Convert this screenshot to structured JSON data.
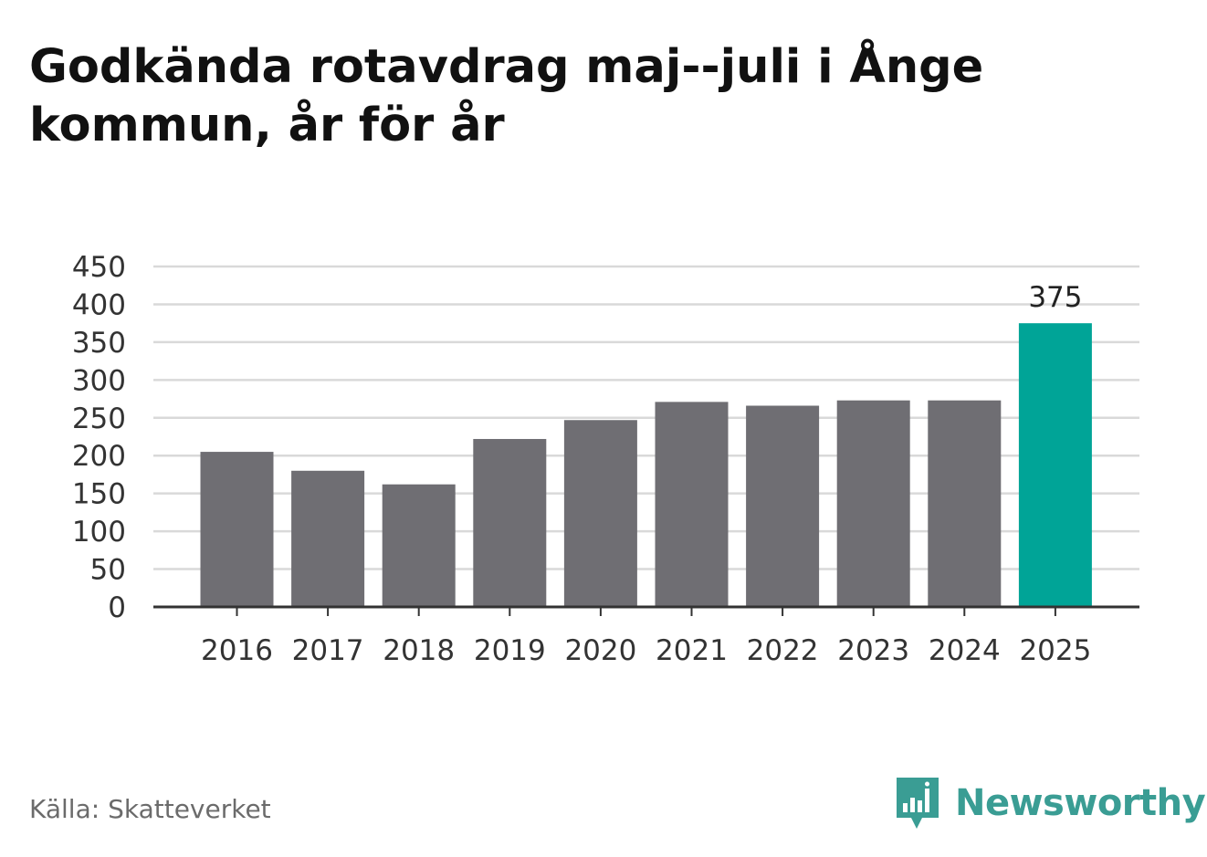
{
  "header": {
    "title": "Godkända rotavdrag maj--juli i Ånge kommun, år för år"
  },
  "footer": {
    "source": "Källa: Skatteverket",
    "brand": "Newsworthy"
  },
  "colors": {
    "bar_default": "#6f6e73",
    "bar_highlight": "#00a497",
    "gridline": "#d9d9d9",
    "axis": "#333333",
    "brand": "#3a9d94"
  },
  "chart_data": {
    "type": "bar",
    "title": "Godkända rotavdrag maj--juli i Ånge kommun, år för år",
    "xlabel": "",
    "ylabel": "",
    "categories": [
      "2016",
      "2017",
      "2018",
      "2019",
      "2020",
      "2021",
      "2022",
      "2023",
      "2024",
      "2025"
    ],
    "values": [
      205,
      180,
      162,
      222,
      247,
      271,
      266,
      273,
      273,
      375
    ],
    "highlight_index": 9,
    "data_labels": [
      {
        "index": 9,
        "text": "375"
      }
    ],
    "ylim": [
      0,
      450
    ],
    "yticks": [
      0,
      50,
      100,
      150,
      200,
      250,
      300,
      350,
      400,
      450
    ],
    "ytick_labels": [
      "0",
      "50",
      "100",
      "150",
      "200",
      "250",
      "300",
      "350",
      "400",
      "450"
    ],
    "grid": true,
    "legend": "none"
  }
}
